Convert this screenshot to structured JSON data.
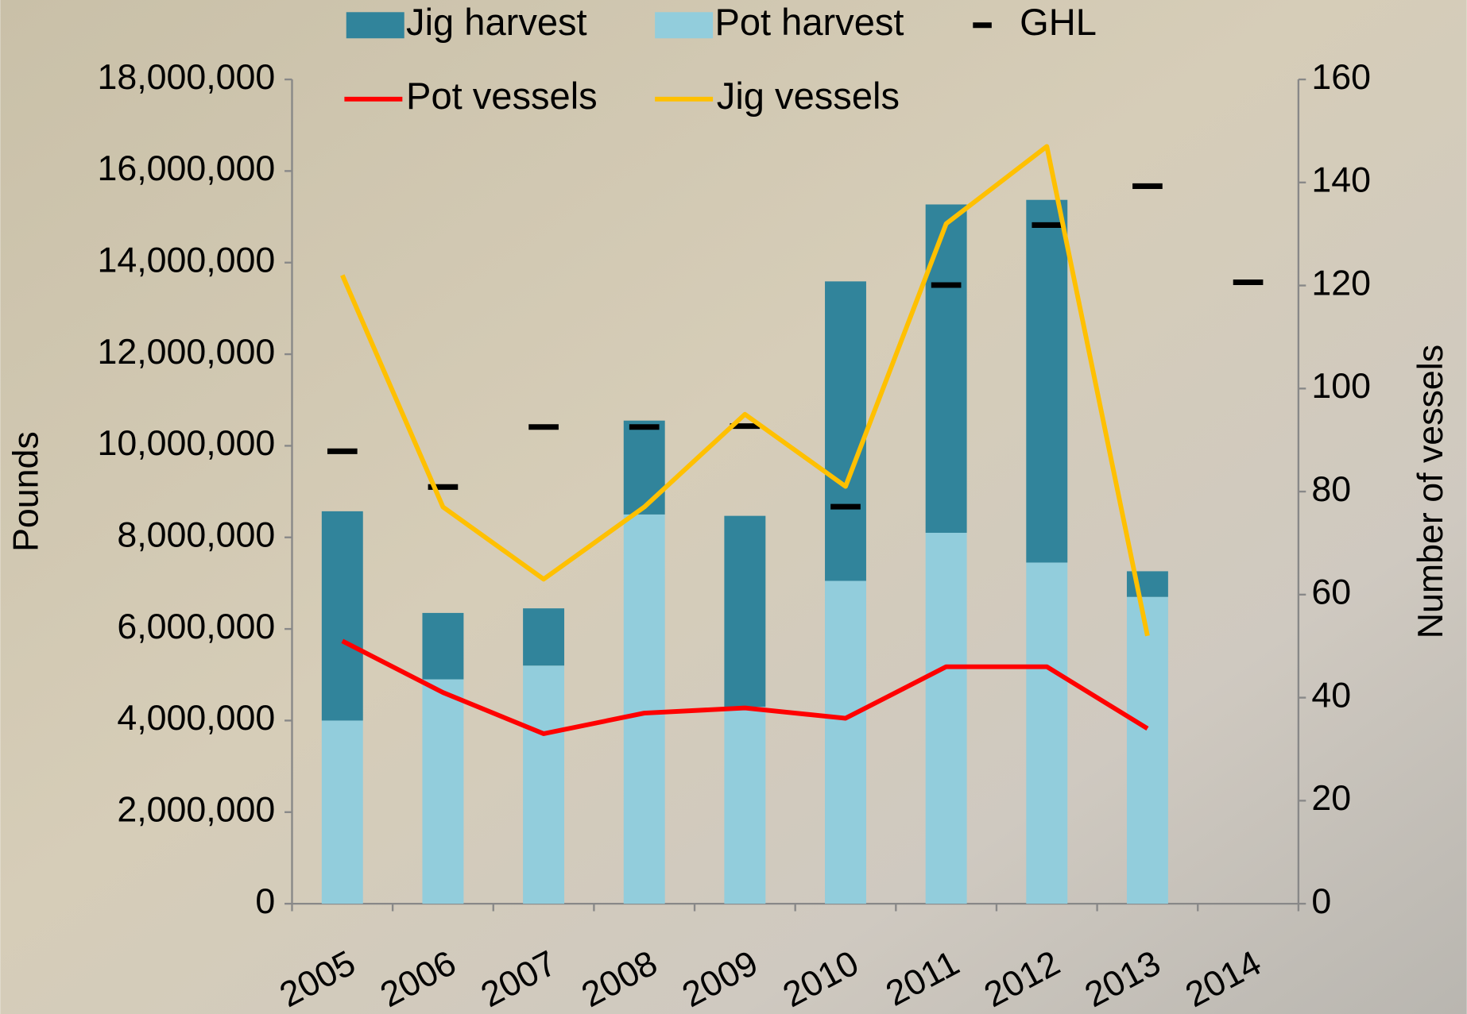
{
  "chart_data": {
    "type": "stacked_bar_line",
    "categories": [
      "2005",
      "2006",
      "2007",
      "2008",
      "2009",
      "2010",
      "2011",
      "2012",
      "2013",
      "2014"
    ],
    "series": [
      {
        "name": "Pot harvest",
        "kind": "bar",
        "color": "#92cddc",
        "values": [
          4000000,
          4900000,
          5200000,
          8500000,
          4300000,
          7050000,
          8100000,
          7450000,
          6700000,
          null
        ]
      },
      {
        "name": "Jig harvest",
        "kind": "bar",
        "color": "#31849b",
        "values": [
          4570000,
          1450000,
          1250000,
          2050000,
          4170000,
          6540000,
          7170000,
          7920000,
          560000,
          null
        ]
      },
      {
        "name": "GHL",
        "kind": "marker",
        "color": "#000000",
        "values": [
          9880000,
          9100000,
          10410000,
          10410000,
          10430000,
          8670000,
          13510000,
          14820000,
          15670000,
          13570000
        ]
      },
      {
        "name": "Pot vessels",
        "kind": "line",
        "axis": "y2",
        "color": "#ff0000",
        "values": [
          51,
          41,
          33,
          37,
          38,
          36,
          46,
          46,
          34,
          null
        ]
      },
      {
        "name": "Jig vessels",
        "kind": "line",
        "axis": "y2",
        "color": "#ffc000",
        "values": [
          122,
          77,
          63,
          77,
          95,
          81,
          132,
          147,
          52,
          null
        ]
      }
    ],
    "y_label": "Pounds",
    "y2_label": "Number of vessels",
    "ylim": [
      0,
      18000000
    ],
    "yticks": [
      0,
      {
        "value": 2000000,
        "label": "2,000,000"
      },
      {
        "value": 4000000,
        "label": "4,000,000"
      },
      {
        "value": 6000000,
        "label": "6,000,000"
      },
      {
        "value": 8000000,
        "label": "8,000,000"
      },
      {
        "value": 10000000,
        "label": "10,000,000"
      },
      {
        "value": 12000000,
        "label": "12,000,000"
      },
      {
        "value": 14000000,
        "label": "14,000,000"
      },
      {
        "value": 16000000,
        "label": "16,000,000"
      },
      {
        "value": 18000000,
        "label": "18,000,000"
      }
    ],
    "y2lim": [
      0,
      160
    ],
    "y2ticks": [
      0,
      20,
      40,
      60,
      80,
      100,
      120,
      140,
      160
    ]
  }
}
